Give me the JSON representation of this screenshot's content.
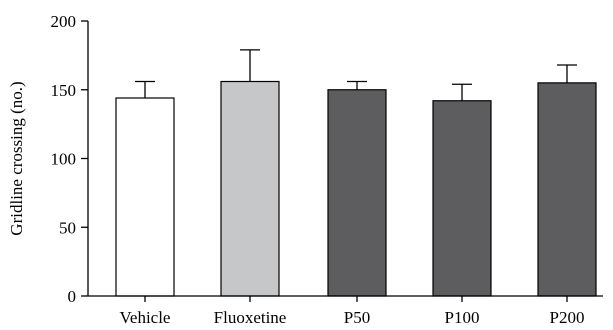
{
  "chart_data": {
    "type": "bar",
    "title": "",
    "xlabel": "",
    "ylabel": "Gridline crossing (no.)",
    "ylim": [
      0,
      200
    ],
    "yticks": [
      0,
      50,
      100,
      150,
      200
    ],
    "categories": [
      "Vehicle",
      "Fluoxetine",
      "P50",
      "P100",
      "P200"
    ],
    "values": [
      144,
      156,
      150,
      142,
      155
    ],
    "error": [
      12,
      23,
      6,
      12,
      13
    ],
    "bar_colors": [
      "#ffffff",
      "#c6c7c9",
      "#5d5d5f",
      "#5d5d5f",
      "#5d5d5f"
    ],
    "bar_edge_color": "#000000",
    "grid": false,
    "legend": "none"
  }
}
